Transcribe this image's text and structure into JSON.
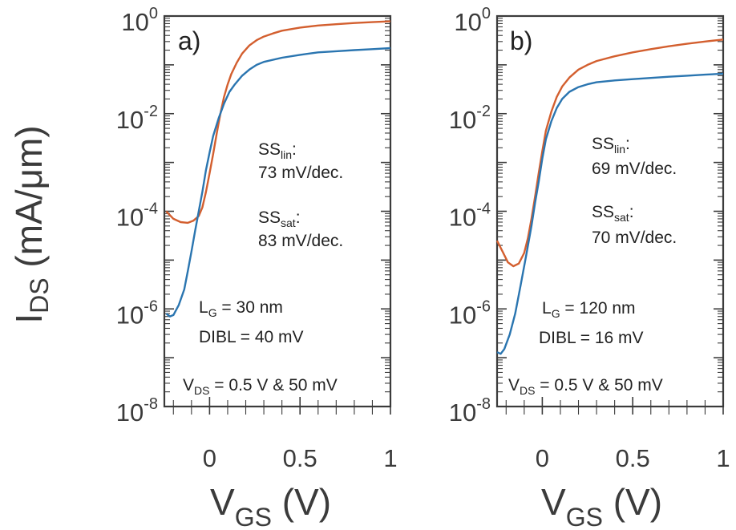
{
  "y_axis_label": {
    "main": "I",
    "sub": "DS",
    "unit": " (mA/μm)"
  },
  "x_axis_label": {
    "main": "V",
    "sub": "GS",
    "unit": " (V)"
  },
  "colors": {
    "sat": "#d35f2f",
    "lin": "#2a75b0",
    "axis": "#3b3b3b"
  },
  "chart_data": [
    {
      "type": "line",
      "panel": "a)",
      "xlabel": "VGS (V)",
      "ylabel": "IDS (mA/μm)",
      "xlim": [
        -0.25,
        1.0
      ],
      "ylim": [
        1e-08,
        1
      ],
      "yscale": "log",
      "x_ticks": [
        "0",
        "0.5",
        "1"
      ],
      "y_ticks": [
        {
          "base": "10",
          "exp": "0"
        },
        {
          "base": "10",
          "exp": "-2"
        },
        {
          "base": "10",
          "exp": "-4"
        },
        {
          "base": "10",
          "exp": "-6"
        },
        {
          "base": "10",
          "exp": "-8"
        }
      ],
      "annotations": {
        "ss_lin": {
          "label": "SS",
          "sub": "lin",
          "suffix": ":",
          "value": "73 mV/dec."
        },
        "ss_sat": {
          "label": "SS",
          "sub": "sat",
          "suffix": ":",
          "value": "83 mV/dec."
        },
        "lg": {
          "label": "L",
          "sub": "G",
          "value": " = 30 nm"
        },
        "dibl": "DIBL = 40 mV",
        "vds": {
          "label": "V",
          "sub": "DS",
          "value": " = 0.5 V & 50 mV"
        }
      },
      "series": [
        {
          "key": "sat",
          "x": [
            -0.24,
            -0.2,
            -0.16,
            -0.12,
            -0.09,
            -0.06,
            -0.04,
            -0.02,
            0.0,
            0.02,
            0.04,
            0.06,
            0.08,
            0.1,
            0.12,
            0.15,
            0.18,
            0.22,
            0.26,
            0.3,
            0.35,
            0.4,
            0.5,
            0.6,
            0.7,
            0.8,
            0.9,
            1.0
          ],
          "y": [
            0.0001,
            7e-05,
            6e-05,
            5.8e-05,
            6.4e-05,
            8e-05,
            0.00012,
            0.00025,
            0.0006,
            0.0015,
            0.004,
            0.01,
            0.022,
            0.04,
            0.065,
            0.11,
            0.17,
            0.25,
            0.32,
            0.38,
            0.44,
            0.5,
            0.58,
            0.64,
            0.68,
            0.72,
            0.75,
            0.78
          ]
        },
        {
          "key": "lin",
          "x": [
            -0.24,
            -0.22,
            -0.2,
            -0.17,
            -0.14,
            -0.12,
            -0.1,
            -0.08,
            -0.06,
            -0.04,
            -0.02,
            0.0,
            0.02,
            0.05,
            0.08,
            0.11,
            0.14,
            0.18,
            0.22,
            0.26,
            0.3,
            0.4,
            0.5,
            0.6,
            0.7,
            0.8,
            0.9,
            1.0
          ],
          "y": [
            8e-07,
            7e-07,
            7.5e-07,
            1.2e-06,
            2.5e-06,
            6e-06,
            1.5e-05,
            4e-05,
            0.0001,
            0.00025,
            0.0007,
            0.0016,
            0.0035,
            0.008,
            0.016,
            0.028,
            0.04,
            0.06,
            0.08,
            0.1,
            0.115,
            0.14,
            0.16,
            0.18,
            0.19,
            0.2,
            0.21,
            0.22
          ]
        }
      ]
    },
    {
      "type": "line",
      "panel": "b)",
      "xlabel": "VGS (V)",
      "ylabel": "IDS (mA/μm)",
      "xlim": [
        -0.25,
        1.0
      ],
      "ylim": [
        1e-08,
        1
      ],
      "yscale": "log",
      "x_ticks": [
        "0",
        "0.5",
        "1"
      ],
      "y_ticks": [
        {
          "base": "10",
          "exp": "0"
        },
        {
          "base": "10",
          "exp": "-2"
        },
        {
          "base": "10",
          "exp": "-4"
        },
        {
          "base": "10",
          "exp": "-6"
        },
        {
          "base": "10",
          "exp": "-8"
        }
      ],
      "annotations": {
        "ss_lin": {
          "label": "SS",
          "sub": "lin",
          "suffix": ":",
          "value": "69 mV/dec."
        },
        "ss_sat": {
          "label": "SS",
          "sub": "sat",
          "suffix": ":",
          "value": "70 mV/dec."
        },
        "lg": {
          "label": "L",
          "sub": "G",
          "value": " = 120 nm"
        },
        "dibl": "DIBL = 16 mV",
        "vds": {
          "label": "V",
          "sub": "DS",
          "value": " = 0.5 V & 50 mV"
        }
      },
      "series": [
        {
          "key": "sat",
          "x": [
            -0.25,
            -0.22,
            -0.19,
            -0.16,
            -0.13,
            -0.1,
            -0.08,
            -0.06,
            -0.04,
            -0.02,
            0.0,
            0.02,
            0.05,
            0.08,
            0.11,
            0.15,
            0.2,
            0.25,
            0.3,
            0.4,
            0.5,
            0.6,
            0.7,
            0.8,
            0.9,
            1.0
          ],
          "y": [
            2.5e-05,
            1.5e-05,
            9e-06,
            7.5e-06,
            8.5e-06,
            1.4e-05,
            2.8e-05,
            7e-05,
            0.0002,
            0.0006,
            0.0017,
            0.0045,
            0.011,
            0.022,
            0.036,
            0.055,
            0.08,
            0.1,
            0.12,
            0.15,
            0.18,
            0.21,
            0.24,
            0.27,
            0.3,
            0.33
          ]
        },
        {
          "key": "lin",
          "x": [
            -0.25,
            -0.23,
            -0.21,
            -0.18,
            -0.15,
            -0.12,
            -0.09,
            -0.06,
            -0.04,
            -0.02,
            0.0,
            0.02,
            0.05,
            0.08,
            0.11,
            0.15,
            0.2,
            0.25,
            0.3,
            0.4,
            0.5,
            0.6,
            0.7,
            0.8,
            0.9,
            1.0
          ],
          "y": [
            1.3e-07,
            1.2e-07,
            1.5e-07,
            3e-07,
            8e-07,
            3e-06,
            1.2e-05,
            5e-05,
            0.00015,
            0.0004,
            0.0012,
            0.003,
            0.007,
            0.013,
            0.02,
            0.028,
            0.035,
            0.04,
            0.044,
            0.048,
            0.051,
            0.054,
            0.057,
            0.06,
            0.063,
            0.066
          ]
        }
      ]
    }
  ]
}
